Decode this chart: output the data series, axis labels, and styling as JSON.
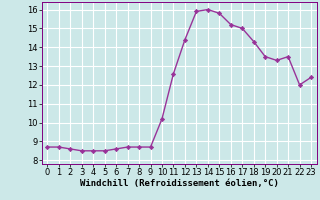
{
  "x": [
    0,
    1,
    2,
    3,
    4,
    5,
    6,
    7,
    8,
    9,
    10,
    11,
    12,
    13,
    14,
    15,
    16,
    17,
    18,
    19,
    20,
    21,
    22,
    23
  ],
  "y": [
    8.7,
    8.7,
    8.6,
    8.5,
    8.5,
    8.5,
    8.6,
    8.7,
    8.7,
    8.7,
    10.2,
    12.6,
    14.4,
    15.9,
    16.0,
    15.8,
    15.2,
    15.0,
    14.3,
    13.5,
    13.3,
    13.5,
    12.0,
    12.4
  ],
  "line_color": "#993399",
  "marker": "D",
  "marker_size": 2.2,
  "bg_color": "#cce8e8",
  "grid_color": "#ffffff",
  "xlabel": "Windchill (Refroidissement éolien,°C)",
  "xlabel_fontsize": 6.5,
  "tick_fontsize": 6.0,
  "ylim": [
    7.8,
    16.4
  ],
  "xlim": [
    -0.5,
    23.5
  ],
  "yticks": [
    8,
    9,
    10,
    11,
    12,
    13,
    14,
    15,
    16
  ],
  "xticks": [
    0,
    1,
    2,
    3,
    4,
    5,
    6,
    7,
    8,
    9,
    10,
    11,
    12,
    13,
    14,
    15,
    16,
    17,
    18,
    19,
    20,
    21,
    22,
    23
  ],
  "linewidth": 1.0
}
